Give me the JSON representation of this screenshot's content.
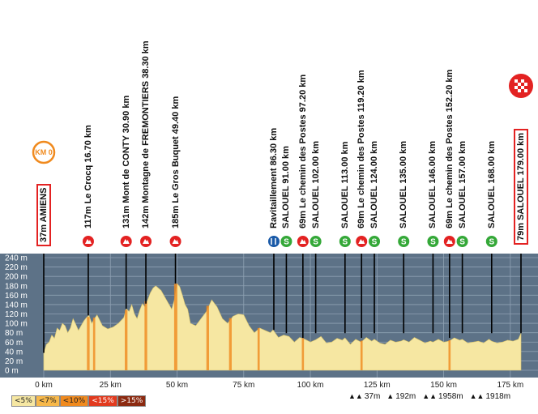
{
  "chart_data": {
    "type": "area",
    "title": "",
    "xlabel": "",
    "ylabel": "",
    "xlim": [
      0,
      180
    ],
    "ylim": [
      0,
      240
    ],
    "x_ticks": [
      "0 km",
      "25 km",
      "50 km",
      "75 km",
      "100 km",
      "125 km",
      "150 km",
      "175 km"
    ],
    "x_tick_values": [
      0,
      25,
      50,
      75,
      100,
      125,
      150,
      175
    ],
    "y_ticks": [
      "0 m",
      "20 m",
      "40 m",
      "60 m",
      "80 m",
      "100 m",
      "120 m",
      "140 m",
      "160 m",
      "180 m",
      "200 m",
      "220 m",
      "240 m"
    ],
    "y_tick_values": [
      0,
      20,
      40,
      60,
      80,
      100,
      120,
      140,
      160,
      180,
      200,
      220,
      240
    ],
    "profile": {
      "x": [
        0,
        1,
        2,
        3,
        4,
        5,
        6,
        7,
        8,
        9,
        10,
        11,
        12,
        13,
        14,
        15,
        16,
        17,
        18,
        19,
        20,
        22,
        24,
        26,
        28,
        30,
        31,
        32,
        33,
        34,
        35,
        36,
        37,
        38,
        39,
        40,
        41,
        42,
        43,
        44,
        45,
        46,
        47,
        48,
        49,
        50,
        51,
        52,
        53,
        54,
        55,
        57,
        59,
        61,
        63,
        65,
        67,
        69,
        71,
        73,
        75,
        77,
        79,
        81,
        83,
        85,
        86,
        88,
        90,
        92,
        94,
        96,
        98,
        100,
        102,
        104,
        106,
        108,
        110,
        112,
        113,
        115,
        117,
        119,
        121,
        123,
        124,
        126,
        128,
        130,
        132,
        134,
        135,
        137,
        139,
        141,
        143,
        145,
        146,
        148,
        150,
        152,
        154,
        156,
        157,
        159,
        161,
        163,
        165,
        167,
        168,
        170,
        172,
        174,
        176,
        178,
        179
      ],
      "y": [
        37,
        55,
        60,
        75,
        68,
        90,
        85,
        100,
        95,
        80,
        90,
        110,
        98,
        85,
        95,
        105,
        112,
        117,
        100,
        110,
        118,
        95,
        88,
        92,
        100,
        112,
        131,
        125,
        140,
        120,
        110,
        128,
        142,
        135,
        150,
        165,
        175,
        180,
        175,
        170,
        160,
        150,
        140,
        130,
        150,
        185,
        178,
        160,
        140,
        130,
        100,
        95,
        110,
        125,
        150,
        135,
        110,
        100,
        115,
        120,
        118,
        95,
        80,
        90,
        85,
        80,
        86,
        70,
        75,
        72,
        60,
        70,
        66,
        60,
        65,
        72,
        58,
        60,
        68,
        64,
        69,
        55,
        66,
        60,
        70,
        62,
        66,
        58,
        55,
        64,
        60,
        62,
        65,
        60,
        70,
        64,
        58,
        62,
        60,
        66,
        60,
        62,
        69,
        64,
        66,
        58,
        60,
        62,
        58,
        66,
        62,
        58,
        60,
        64,
        62,
        66,
        79
      ]
    },
    "steep_segments_km": [
      [
        16.2,
        17.2
      ],
      [
        18.5,
        19.3
      ],
      [
        30.4,
        31.4
      ],
      [
        37.8,
        38.8
      ],
      [
        48.9,
        50.1
      ],
      [
        61,
        62
      ],
      [
        69.5,
        70.5
      ],
      [
        80.2,
        81
      ],
      [
        96.8,
        97.6
      ],
      [
        118.8,
        119.6
      ],
      [
        151.8,
        152.6
      ]
    ],
    "stage_start": {
      "label": "37m AMIENS",
      "km": 0,
      "alt": 37,
      "badge": "KM 0"
    },
    "stage_finish": {
      "label": "79m SALOUEL 179.00 km",
      "km": 179,
      "alt": 79
    },
    "waypoints": [
      {
        "label": "117m Le Crocq 16.70 km",
        "km": 16.7,
        "alt": 117,
        "type": "climb"
      },
      {
        "label": "131m Mont de CONTY 30.90 km",
        "km": 30.9,
        "alt": 131,
        "type": "climb"
      },
      {
        "label": "142m Montagne de FREMONTIERS 38.30 km",
        "km": 38.3,
        "alt": 142,
        "type": "climb"
      },
      {
        "label": "185m Le Gros Buquet 49.40 km",
        "km": 49.4,
        "alt": 185,
        "type": "climb"
      },
      {
        "label": "Ravitaillement 86.30 km",
        "km": 86.3,
        "alt": 86,
        "type": "feed"
      },
      {
        "label": "SALOUEL 91.00 km",
        "km": 91.0,
        "alt": 79,
        "type": "sprint"
      },
      {
        "label": "69m Le chemin des Postes 97.20 km",
        "km": 97.2,
        "alt": 69,
        "type": "climb"
      },
      {
        "label": "SALOUEL 102.00 km",
        "km": 102.0,
        "alt": 79,
        "type": "sprint"
      },
      {
        "label": "SALOUEL 113.00 km",
        "km": 113.0,
        "alt": 79,
        "type": "sprint"
      },
      {
        "label": "69m Le chemin des Postes 119.20 km",
        "km": 119.2,
        "alt": 69,
        "type": "climb"
      },
      {
        "label": "SALOUEL 124.00 km",
        "km": 124.0,
        "alt": 79,
        "type": "sprint"
      },
      {
        "label": "SALOUEL 135.00 km",
        "km": 135.0,
        "alt": 79,
        "type": "sprint"
      },
      {
        "label": "SALOUEL 146.00 km",
        "km": 146.0,
        "alt": 79,
        "type": "sprint"
      },
      {
        "label": "69m Le chemin des Postes 152.20 km",
        "km": 152.2,
        "alt": 69,
        "type": "climb"
      },
      {
        "label": "SALOUEL 157.00 km",
        "km": 157.0,
        "alt": 79,
        "type": "sprint"
      },
      {
        "label": "SALOUEL 168.00 km",
        "km": 168.0,
        "alt": 79,
        "type": "sprint"
      }
    ],
    "gradient_legend": [
      "<5%",
      "<7%",
      "<10%",
      "<15%",
      ">15%"
    ],
    "gradient_colors": [
      "#f6e7a2",
      "#f7b84a",
      "#f08a1e",
      "#e23a1e",
      "#8b2a10"
    ],
    "stats": [
      "37m",
      "192m",
      "1958m",
      "1918m"
    ]
  },
  "colors": {
    "plot_bg": "#5d7287",
    "grid": "#8fa1b3",
    "fill": "#f6e7a2",
    "climb_badge": "#e32222",
    "sprint_badge": "#34a838",
    "feed_badge": "#1a5aa8",
    "start_badge": "#f08a1e"
  }
}
